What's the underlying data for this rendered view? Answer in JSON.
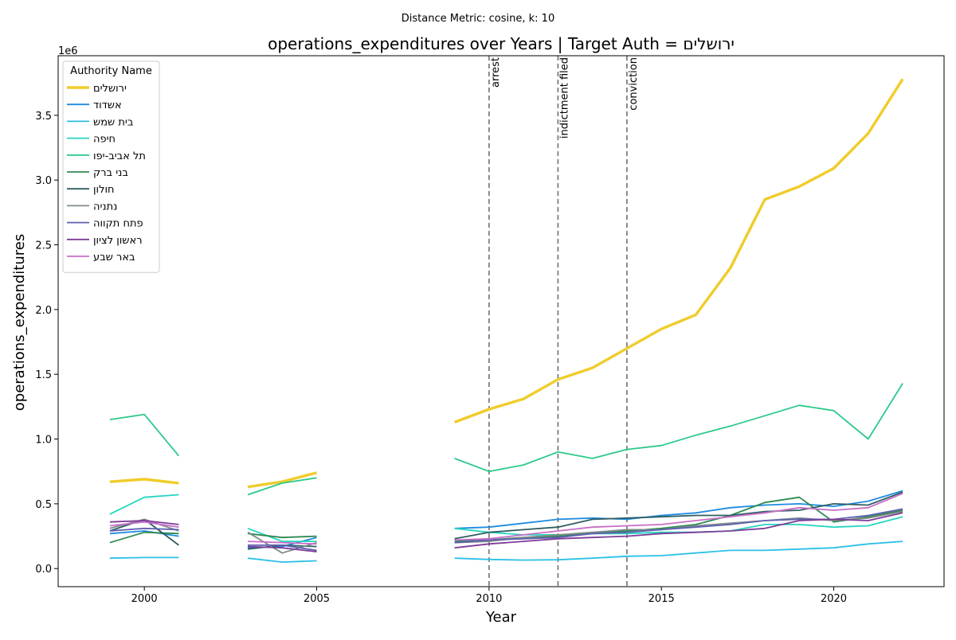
{
  "suptitle": "Distance Metric: cosine, k: 10",
  "chart_data": {
    "type": "line",
    "title": "operations_expenditures over Years | Target Auth = ירושלים",
    "xlabel": "Year",
    "ylabel": "operations_expenditures",
    "y_offset_label": "1e6",
    "xlim": [
      1997.5,
      2023.2
    ],
    "ylim": [
      -0.14,
      3.96
    ],
    "y_scale": 1000000,
    "xticks": [
      2000,
      2005,
      2010,
      2015,
      2020
    ],
    "xtick_labels": [
      "2000",
      "2005",
      "2010",
      "2015",
      "2020"
    ],
    "yticks": [
      0.0,
      0.5,
      1.0,
      1.5,
      2.0,
      2.5,
      3.0,
      3.5
    ],
    "ytick_labels": [
      "0.0",
      "0.5",
      "1.0",
      "1.5",
      "2.0",
      "2.5",
      "3.0",
      "3.5"
    ],
    "grid": false,
    "legend_title": "Authority Name",
    "legend_position": "upper-left",
    "events": [
      {
        "x": 2010,
        "label": "arrest"
      },
      {
        "x": 2012,
        "label": "indictment filed"
      },
      {
        "x": 2014,
        "label": "conviction"
      }
    ],
    "x": [
      1999,
      2000,
      2001,
      2002,
      2003,
      2004,
      2005,
      2006,
      2007,
      2008,
      2009,
      2010,
      2011,
      2012,
      2013,
      2014,
      2015,
      2016,
      2017,
      2018,
      2019,
      2020,
      2021,
      2022
    ],
    "series": [
      {
        "name": "ירושלים",
        "color": "#f0cc2a",
        "width": 3.4,
        "values": [
          0.67,
          0.69,
          0.66,
          null,
          0.63,
          0.67,
          0.74,
          null,
          null,
          null,
          1.13,
          1.23,
          1.31,
          1.46,
          1.55,
          1.7,
          1.85,
          1.96,
          2.32,
          2.85,
          2.95,
          3.09,
          3.36,
          3.78
        ]
      },
      {
        "name": "אשדוד",
        "color": "#1f8be0",
        "width": 1.8,
        "values": [
          0.27,
          0.29,
          0.25,
          null,
          0.16,
          0.17,
          0.24,
          null,
          null,
          null,
          0.31,
          0.32,
          0.35,
          0.38,
          0.39,
          0.38,
          0.41,
          0.43,
          0.47,
          0.49,
          0.5,
          0.48,
          0.52,
          0.6
        ]
      },
      {
        "name": "בית שמש",
        "color": "#2bc0e8",
        "width": 1.8,
        "values": [
          0.08,
          0.085,
          0.085,
          null,
          0.08,
          0.05,
          0.06,
          null,
          null,
          null,
          0.08,
          0.07,
          0.065,
          0.068,
          0.08,
          0.095,
          0.1,
          0.12,
          0.14,
          0.14,
          0.15,
          0.16,
          0.19,
          0.21
        ]
      },
      {
        "name": "חיפה",
        "color": "#25d6c0",
        "width": 1.8,
        "values": [
          0.42,
          0.55,
          0.57,
          null,
          0.31,
          0.21,
          0.21,
          null,
          null,
          null,
          0.31,
          0.28,
          0.26,
          0.26,
          0.27,
          0.27,
          0.28,
          0.28,
          0.29,
          0.34,
          0.34,
          0.32,
          0.33,
          0.4
        ]
      },
      {
        "name": "תל אביב-יפו",
        "color": "#2cc98a",
        "width": 1.8,
        "values": [
          1.15,
          1.19,
          0.87,
          null,
          0.57,
          0.66,
          0.7,
          null,
          null,
          null,
          0.85,
          0.75,
          0.8,
          0.9,
          0.85,
          0.92,
          0.95,
          1.03,
          1.1,
          1.18,
          1.26,
          1.22,
          1.0,
          1.43
        ]
      },
      {
        "name": "בני ברק",
        "color": "#2e8a52",
        "width": 1.8,
        "values": [
          0.2,
          0.28,
          0.27,
          null,
          0.27,
          0.24,
          0.25,
          null,
          null,
          null,
          0.21,
          0.22,
          0.24,
          0.25,
          0.27,
          0.29,
          0.31,
          0.34,
          0.41,
          0.51,
          0.55,
          0.36,
          0.4,
          0.45
        ]
      },
      {
        "name": "חולון",
        "color": "#2f5f63",
        "width": 1.8,
        "values": [
          0.29,
          0.38,
          0.18,
          null,
          0.15,
          0.18,
          0.17,
          null,
          null,
          null,
          0.23,
          0.28,
          0.3,
          0.32,
          0.38,
          0.39,
          0.4,
          0.41,
          0.41,
          0.44,
          0.45,
          0.5,
          0.49,
          0.59
        ]
      },
      {
        "name": "נתניה",
        "color": "#7e8c88",
        "width": 1.8,
        "values": [
          0.31,
          0.38,
          0.29,
          null,
          0.28,
          0.12,
          0.2,
          null,
          null,
          null,
          0.2,
          0.21,
          0.24,
          0.26,
          0.28,
          0.3,
          0.3,
          0.33,
          0.35,
          0.37,
          0.39,
          0.37,
          0.39,
          0.44
        ]
      },
      {
        "name": "פתח תקווה",
        "color": "#5f5fb0",
        "width": 1.8,
        "values": [
          0.29,
          0.31,
          0.3,
          null,
          0.18,
          0.18,
          0.14,
          null,
          null,
          null,
          0.2,
          0.22,
          0.23,
          0.24,
          0.27,
          0.28,
          0.3,
          0.32,
          0.34,
          0.37,
          0.38,
          0.38,
          0.41,
          0.46
        ]
      },
      {
        "name": "ראשון לציון",
        "color": "#7d3c98",
        "width": 1.8,
        "values": [
          0.36,
          0.37,
          0.34,
          null,
          0.17,
          0.16,
          0.13,
          null,
          null,
          null,
          0.16,
          0.19,
          0.21,
          0.23,
          0.24,
          0.25,
          0.27,
          0.28,
          0.29,
          0.31,
          0.37,
          0.38,
          0.37,
          0.43
        ]
      },
      {
        "name": "באר שבע",
        "color": "#c86ec9",
        "width": 1.8,
        "values": [
          0.33,
          0.36,
          0.32,
          null,
          0.21,
          0.2,
          0.19,
          null,
          null,
          null,
          0.22,
          0.23,
          0.26,
          0.29,
          0.32,
          0.33,
          0.34,
          0.37,
          0.4,
          0.43,
          0.47,
          0.45,
          0.47,
          0.58
        ]
      }
    ]
  }
}
